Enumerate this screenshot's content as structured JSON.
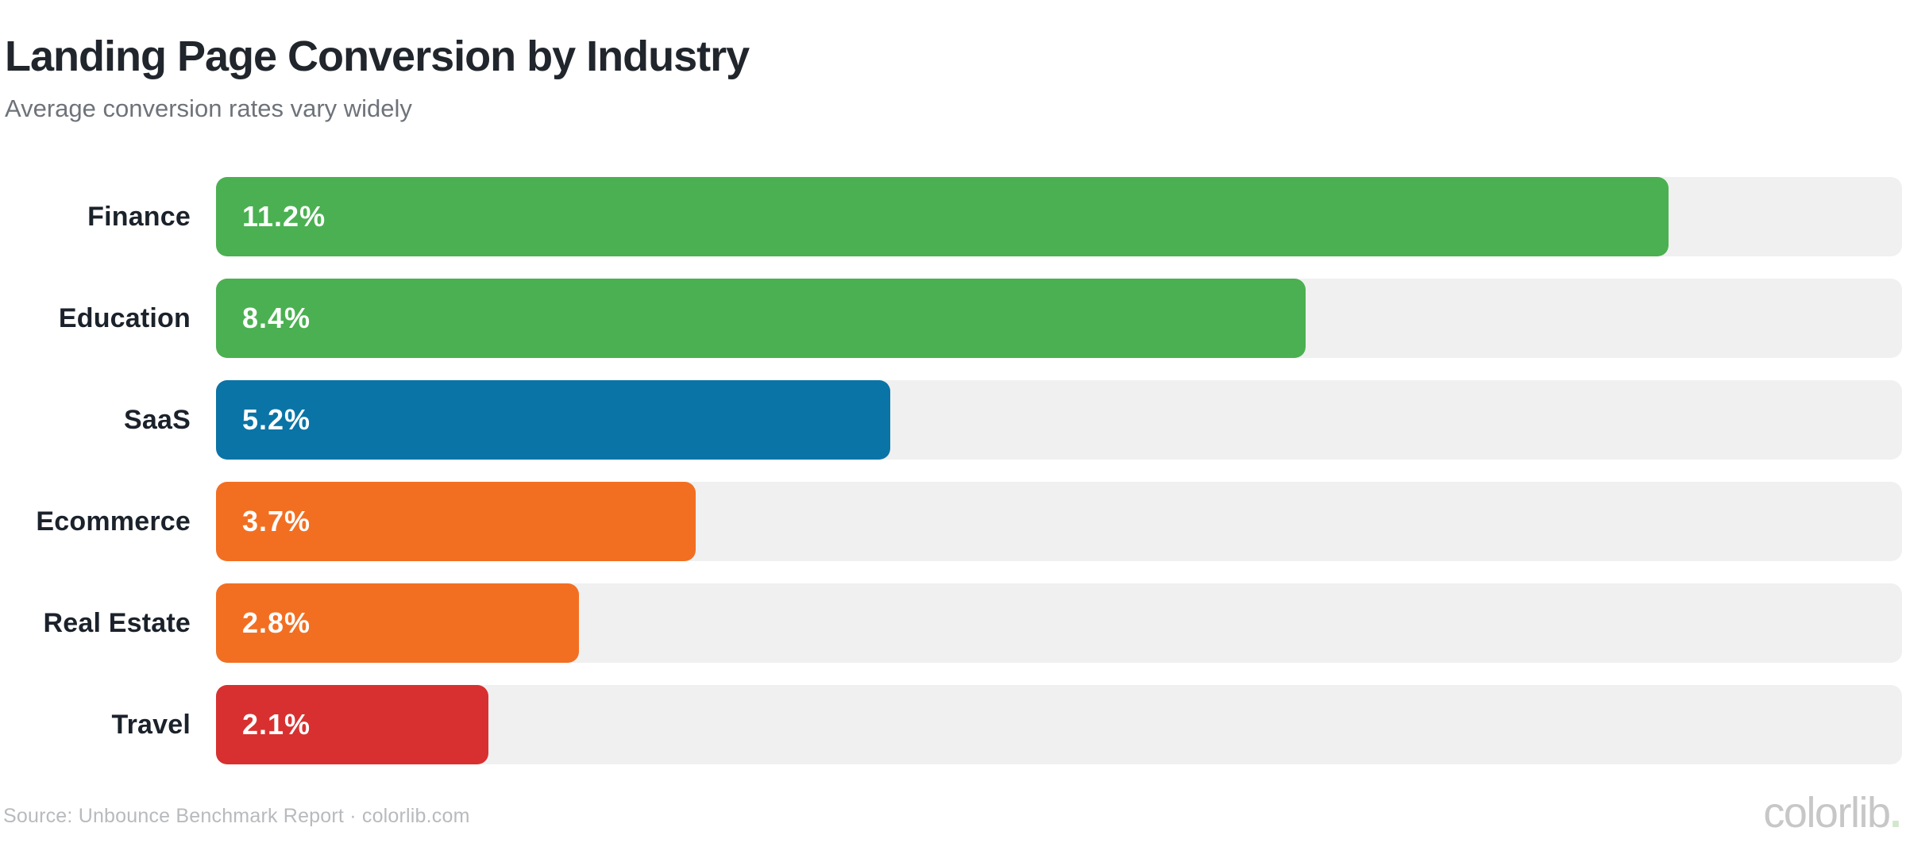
{
  "header": {
    "title": "Landing Page Conversion by Industry",
    "subtitle": "Average conversion rates vary widely"
  },
  "chart_data": {
    "type": "bar",
    "orientation": "horizontal",
    "title": "Landing Page Conversion by Industry",
    "subtitle": "Average conversion rates vary widely",
    "categories": [
      "Finance",
      "Education",
      "SaaS",
      "Ecommerce",
      "Real Estate",
      "Travel"
    ],
    "values": [
      11.2,
      8.4,
      5.2,
      3.7,
      2.8,
      2.1
    ],
    "value_labels": [
      "11.2%",
      "8.4%",
      "5.2%",
      "3.7%",
      "2.8%",
      "2.1%"
    ],
    "bar_colors": [
      "#4bb051",
      "#4bb051",
      "#0a74a6",
      "#f26f22",
      "#f26f22",
      "#d83030"
    ],
    "track_color": "#f0f0f0",
    "xlim": [
      0,
      13
    ],
    "xlabel": "",
    "ylabel": "",
    "grid": false,
    "legend": false,
    "value_label_position": "inside-start",
    "value_label_color": "#ffffff"
  },
  "footer": {
    "source": "Source: Unbounce Benchmark Report · colorlib.com",
    "logo_text": "colorlib",
    "logo_dot": ".",
    "logo_dot_color": "#d2e7cb"
  }
}
